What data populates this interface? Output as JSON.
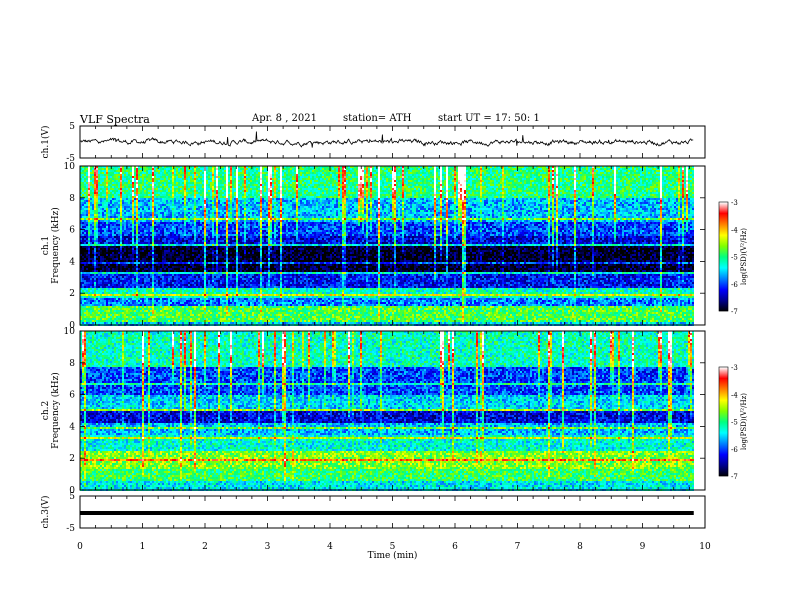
{
  "header": {
    "title": "VLF  Spectra",
    "date": "Apr. 8  , 2021",
    "station": "station= ATH",
    "start_ut": "start  UT  =   17: 50: 1"
  },
  "chart_data": [
    {
      "type": "line",
      "ylabel": "ch.1(V)",
      "ylim": [
        -5,
        5
      ],
      "yticks": [
        "5",
        "-5"
      ],
      "xlim": [
        0,
        10
      ],
      "series": [
        {
          "values_desc": "noisy waveform near 0 V with spikes up to about ±2 V"
        }
      ]
    },
    {
      "type": "heatmap",
      "ylabel_top": "ch.1",
      "ylabel": "Frequency  (kHz)",
      "ylim": [
        0,
        10
      ],
      "yticks": [
        "0",
        "2",
        "4",
        "6",
        "8",
        "10"
      ],
      "xlim": [
        0,
        10
      ],
      "colorbar": {
        "label": "log(PSD)(V²/Hz)",
        "range": [
          -7,
          -3
        ],
        "ticks": [
          "-3",
          "-4",
          "-5",
          "-6",
          "-7"
        ]
      },
      "bands_khz": [
        {
          "from": 0.0,
          "to": 0.3,
          "level": -5.5
        },
        {
          "from": 0.3,
          "to": 1.2,
          "level": -4.8
        },
        {
          "from": 1.2,
          "to": 1.8,
          "level": -5.8
        },
        {
          "from": 1.8,
          "to": 2.4,
          "level": -5.2
        },
        {
          "from": 2.4,
          "to": 3.4,
          "level": -6.2
        },
        {
          "from": 3.4,
          "to": 5.0,
          "level": -6.9
        },
        {
          "from": 5.0,
          "to": 5.6,
          "level": -6.3
        },
        {
          "from": 5.6,
          "to": 6.5,
          "level": -6.0
        },
        {
          "from": 6.5,
          "to": 8.0,
          "level": -5.6
        },
        {
          "from": 8.0,
          "to": 10.0,
          "level": -5.0
        }
      ]
    },
    {
      "type": "heatmap",
      "ylabel_top": "ch.2",
      "ylabel": "Frequency  (kHz)",
      "ylim": [
        0,
        10
      ],
      "yticks": [
        "0",
        "2",
        "4",
        "6",
        "8",
        "10"
      ],
      "xlim": [
        0,
        10
      ],
      "colorbar": {
        "label": "log(PSD)(V²/Hz)",
        "range": [
          -7,
          -3
        ],
        "ticks": [
          "-3",
          "-4",
          "-5",
          "-6",
          "-7"
        ]
      },
      "bands_khz": [
        {
          "from": 0.0,
          "to": 0.6,
          "level": -5.4
        },
        {
          "from": 0.6,
          "to": 1.4,
          "level": -4.9
        },
        {
          "from": 1.4,
          "to": 2.5,
          "level": -4.6
        },
        {
          "from": 2.5,
          "to": 3.5,
          "level": -5.3
        },
        {
          "from": 3.5,
          "to": 4.3,
          "level": -5.6
        },
        {
          "from": 4.3,
          "to": 5.0,
          "level": -6.3
        },
        {
          "from": 5.0,
          "to": 6.0,
          "level": -5.5
        },
        {
          "from": 6.0,
          "to": 7.8,
          "level": -6.0
        },
        {
          "from": 7.8,
          "to": 10.0,
          "level": -5.2
        }
      ]
    },
    {
      "type": "line",
      "ylabel": "ch.3(V)",
      "ylim": [
        -5,
        5
      ],
      "yticks": [
        "5",
        "-5"
      ],
      "xlim": [
        0,
        10
      ],
      "xlabel": "Time  (min)",
      "xticks": [
        "0",
        "1",
        "2",
        "3",
        "4",
        "5",
        "6",
        "7",
        "8",
        "9",
        "10"
      ],
      "series": [
        {
          "values_desc": "flat thick trace at about 0 V"
        }
      ]
    }
  ],
  "colors": {
    "scale": [
      "#000000",
      "#00008b",
      "#0000ff",
      "#0080ff",
      "#00ffff",
      "#00ff80",
      "#80ff00",
      "#ffff00",
      "#ff8000",
      "#ff0000",
      "#ffffff"
    ]
  }
}
